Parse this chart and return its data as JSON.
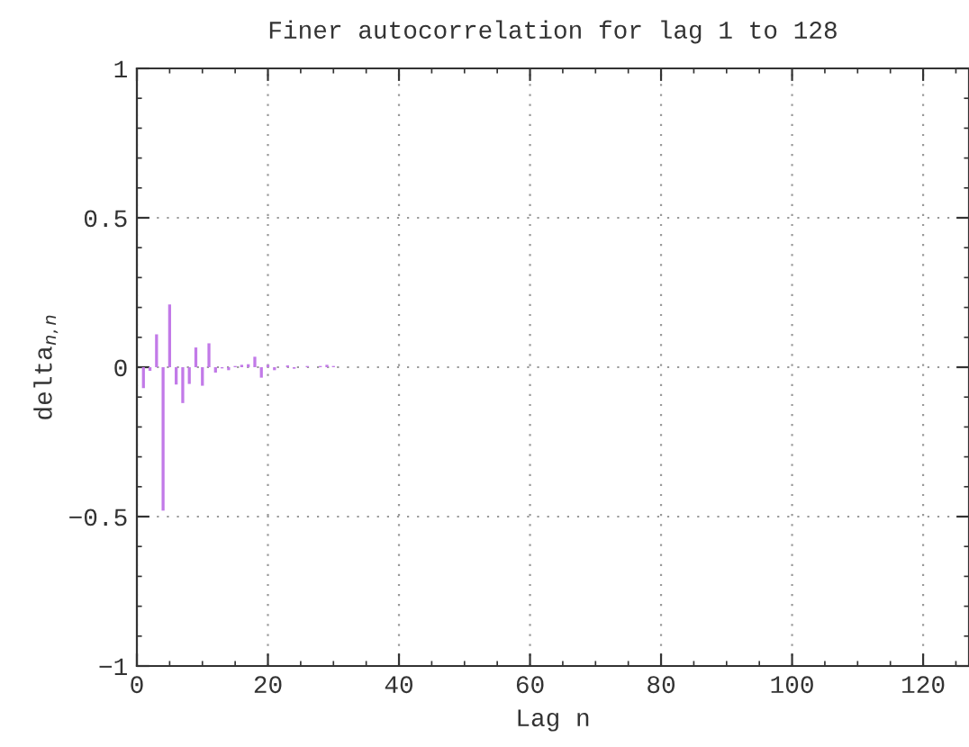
{
  "chart_data": {
    "type": "bar",
    "title": "Finer autocorrelation for lag 1 to 128",
    "xlabel": "Lag n",
    "ylabel": "delta$_{n,n}$",
    "x": [
      1,
      2,
      3,
      4,
      5,
      6,
      7,
      8,
      9,
      10,
      11,
      12,
      13,
      14,
      15,
      16,
      17,
      18,
      19,
      20,
      21,
      22,
      23,
      24,
      25,
      26,
      27,
      28,
      29,
      30
    ],
    "series": [
      {
        "color": "#c27ae8",
        "values": [
          -0.07,
          -0.012,
          0.11,
          -0.48,
          0.21,
          -0.058,
          -0.12,
          -0.056,
          0.066,
          -0.062,
          0.08,
          -0.018,
          -0.004,
          -0.01,
          0.004,
          0.008,
          0.01,
          0.035,
          -0.035,
          0.008,
          -0.01,
          null,
          0.006,
          -0.005,
          null,
          0.004,
          null,
          0.004,
          0.008,
          0.004
        ]
      }
    ],
    "xlim": [
      0,
      127
    ],
    "xticks": [
      0,
      20,
      40,
      60,
      80,
      100,
      120
    ],
    "ylim": [
      -1,
      1
    ],
    "yticks": [
      -1,
      -0.5,
      0,
      0.5,
      1
    ],
    "grid": true
  }
}
